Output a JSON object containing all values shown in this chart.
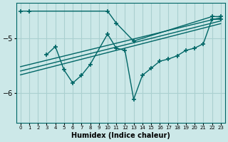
{
  "xlabel": "Humidex (Indice chaleur)",
  "background_color": "#cce8e8",
  "line_color": "#006666",
  "grid_color": "#aad0d0",
  "xlim": [
    -0.5,
    23.5
  ],
  "ylim": [
    -6.55,
    -4.35
  ],
  "yticks": [
    -6,
    -5
  ],
  "xticks": [
    0,
    1,
    2,
    3,
    4,
    5,
    6,
    7,
    8,
    9,
    10,
    11,
    12,
    13,
    14,
    15,
    16,
    17,
    18,
    19,
    20,
    21,
    22,
    23
  ],
  "line1_x": [
    0,
    1,
    10,
    11,
    13,
    22,
    23
  ],
  "line1_y": [
    -4.5,
    -4.5,
    -4.5,
    -4.72,
    -5.05,
    -4.6,
    -4.6
  ],
  "line2_x": [
    3,
    4,
    5,
    6,
    7,
    8,
    10,
    11,
    12,
    13,
    14,
    15,
    16,
    17,
    18,
    19,
    20,
    21,
    22,
    23
  ],
  "line2_y": [
    -5.3,
    -5.15,
    -5.58,
    -5.82,
    -5.68,
    -5.48,
    -4.92,
    -5.18,
    -5.22,
    -6.12,
    -5.68,
    -5.55,
    -5.42,
    -5.38,
    -5.32,
    -5.22,
    -5.18,
    -5.1,
    -4.65,
    -4.65
  ],
  "line3_x": [
    0,
    23
  ],
  "line3_y": [
    -5.52,
    -4.62
  ],
  "line4_x": [
    0,
    23
  ],
  "line4_y": [
    -5.6,
    -4.68
  ],
  "line5_x": [
    0,
    23
  ],
  "line5_y": [
    -5.67,
    -4.73
  ]
}
